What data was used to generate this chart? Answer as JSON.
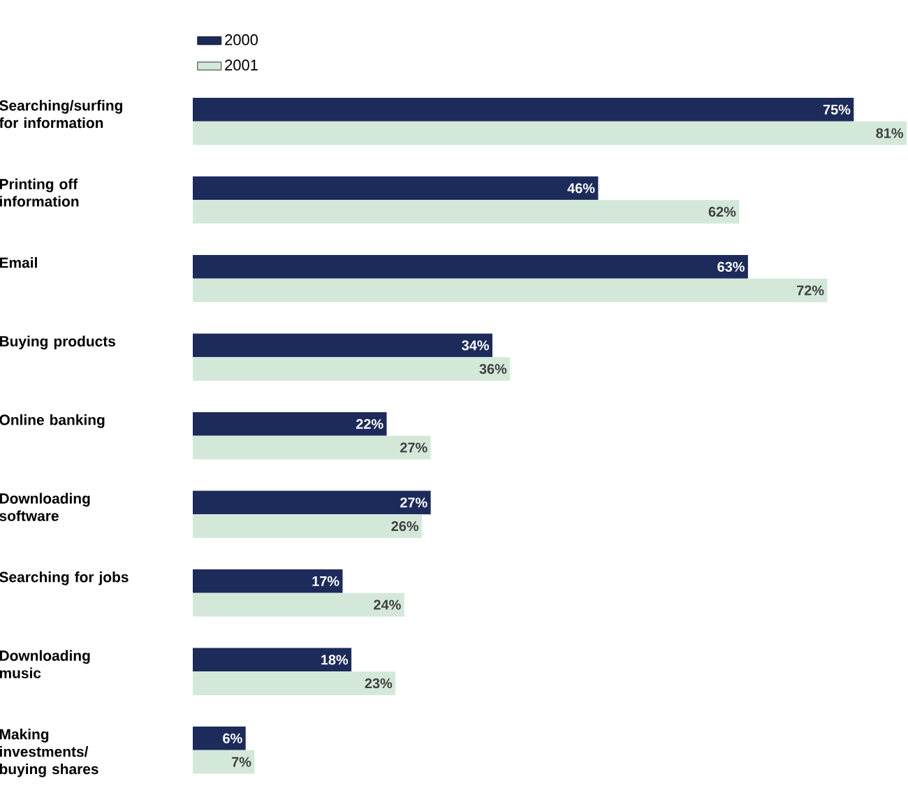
{
  "chart_data": {
    "type": "bar",
    "orientation": "horizontal",
    "legend": "top left",
    "categories": [
      "Searching/surfing for information",
      "Printing off information",
      "Email",
      "Buying products",
      "Online banking",
      "Downloading software",
      "Searching for jobs",
      "Downloading music",
      "Making investments/ buying shares"
    ],
    "series": [
      {
        "name": "2000",
        "color": "#1c2b5a",
        "values": [
          75,
          46,
          63,
          34,
          22,
          27,
          17,
          18,
          6
        ],
        "value_labels": [
          "75%",
          "46%",
          "63%",
          "34%",
          "22%",
          "27%",
          "17%",
          "18%",
          "6%"
        ]
      },
      {
        "name": "2001",
        "color": "#d4e8da",
        "values": [
          81,
          62,
          72,
          36,
          27,
          26,
          24,
          23,
          7
        ],
        "value_labels": [
          "81%",
          "62%",
          "72%",
          "36%",
          "27%",
          "26%",
          "24%",
          "23%",
          "7%"
        ]
      }
    ]
  }
}
